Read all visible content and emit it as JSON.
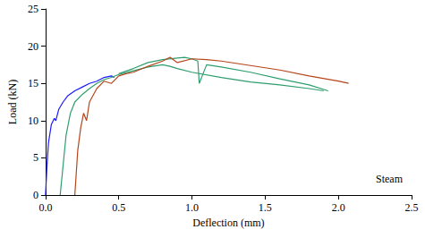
{
  "chart_data": {
    "type": "line",
    "x_label": "Deflection (mm)",
    "y_label": "Load (kN)",
    "annotations": [
      "Steam"
    ],
    "xlim": [
      0,
      2.5
    ],
    "xticks": [
      {
        "value": 0,
        "label": "0.0"
      },
      0.5,
      {
        "value": 1,
        "label": "1.0"
      },
      1.5,
      {
        "value": 2,
        "label": "2.0"
      },
      2.5
    ],
    "ylim": [
      0,
      25
    ],
    "yticks": [
      0,
      5,
      10,
      15,
      20,
      25
    ],
    "grid": false,
    "series": [
      {
        "color": "#1a1aff",
        "x": [
          0,
          0.01,
          0.02,
          0.04,
          0.06,
          0.07,
          0.09,
          0.12,
          0.15,
          0.2,
          0.25,
          0.3,
          0.35,
          0.4,
          0.45,
          0.47
        ],
        "values": [
          0,
          4,
          7,
          9.5,
          10.3,
          10,
          11.5,
          12.5,
          13.3,
          14,
          14.5,
          15,
          15.3,
          15.8,
          16,
          15.8
        ]
      },
      {
        "color": "#2e9e6e",
        "x": [
          0.1,
          0.12,
          0.14,
          0.17,
          0.2,
          0.25,
          0.3,
          0.35,
          0.4,
          0.45,
          0.5,
          0.6,
          0.7,
          0.8,
          0.85,
          0.9,
          1.0,
          1.2,
          1.4,
          1.6,
          1.8,
          1.9
        ],
        "values": [
          0,
          4,
          8,
          11,
          12.5,
          13.5,
          14.3,
          15,
          15.5,
          15.8,
          16.2,
          16.7,
          17.2,
          17.5,
          17.3,
          17,
          16.5,
          15.8,
          15.2,
          14.8,
          14.3,
          14
        ]
      },
      {
        "color": "#2e9e6e",
        "x": [
          0.5,
          0.6,
          0.7,
          0.8,
          0.9,
          0.95,
          1.0,
          1.04,
          1.05,
          1.07,
          1.1,
          1.2,
          1.4,
          1.6,
          1.8,
          1.93
        ],
        "values": [
          16.3,
          17,
          17.8,
          18.2,
          18.4,
          18.5,
          18.3,
          18,
          15,
          16,
          17.5,
          17.2,
          16.5,
          15.6,
          14.8,
          14
        ]
      },
      {
        "color": "#b5451b",
        "x": [
          0.2,
          0.21,
          0.22,
          0.24,
          0.26,
          0.28,
          0.3,
          0.35,
          0.4,
          0.45,
          0.5,
          0.55,
          0.6,
          0.7,
          0.8,
          0.85,
          0.9,
          1.0,
          1.1,
          1.2,
          1.4,
          1.6,
          1.8,
          2.0,
          2.07
        ],
        "values": [
          0,
          3,
          6,
          9,
          11,
          10,
          12.5,
          14.3,
          15.3,
          15,
          16,
          16.3,
          16.5,
          17.3,
          18,
          18.5,
          17.8,
          18.3,
          18.2,
          18,
          17.4,
          16.8,
          16,
          15.3,
          15
        ]
      }
    ]
  }
}
